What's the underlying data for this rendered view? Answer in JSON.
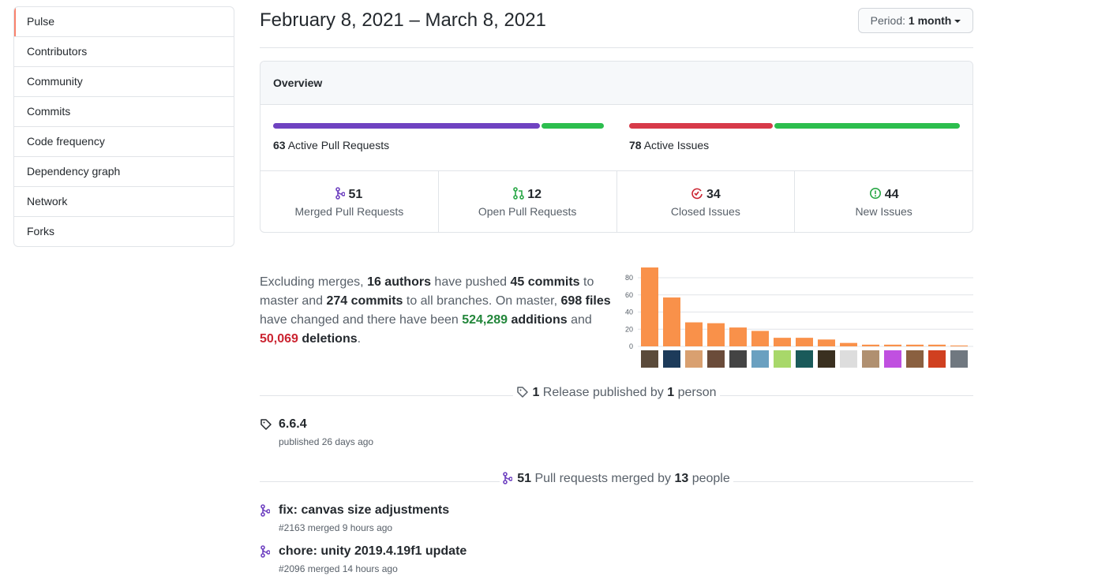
{
  "sidebar": {
    "items": [
      "Pulse",
      "Contributors",
      "Community",
      "Commits",
      "Code frequency",
      "Dependency graph",
      "Network",
      "Forks"
    ],
    "selected": 0
  },
  "header": {
    "title": "February 8, 2021 – March 8, 2021",
    "period_label": "Period:",
    "period_value": "1 month"
  },
  "overview": {
    "title": "Overview",
    "pull_requests": {
      "count": 63,
      "label": "Active Pull Requests"
    },
    "issues": {
      "count": 78,
      "label": "Active Issues"
    },
    "stats": [
      {
        "count": 51,
        "label": "Merged Pull Requests"
      },
      {
        "count": 12,
        "label": "Open Pull Requests"
      },
      {
        "count": 34,
        "label": "Closed Issues"
      },
      {
        "count": 44,
        "label": "New Issues"
      }
    ]
  },
  "summary": {
    "segments": [
      {
        "text": "Excluding merges, "
      },
      {
        "text": "16 authors",
        "style": "bold"
      },
      {
        "text": " have pushed "
      },
      {
        "text": "45 commits",
        "style": "bold"
      },
      {
        "text": " to master and "
      },
      {
        "text": "274 commits",
        "style": "bold"
      },
      {
        "text": " to all branches. On master, "
      },
      {
        "text": "698 files",
        "style": "bold"
      },
      {
        "text": " have changed and there have been "
      },
      {
        "text": "524,289",
        "style": "green"
      },
      {
        "text": " additions",
        "style": "bold"
      },
      {
        "text": " and "
      },
      {
        "text": "50,069",
        "style": "red"
      },
      {
        "text": " deletions",
        "style": "bold"
      },
      {
        "text": "."
      }
    ]
  },
  "chart_data": {
    "type": "bar",
    "values": [
      92,
      57,
      28,
      27,
      22,
      18,
      10,
      10,
      8,
      4,
      2,
      2,
      2,
      2,
      1
    ],
    "color": "#f9914a",
    "ylim": [
      0,
      92
    ],
    "yticks": [
      0,
      20,
      40,
      60,
      80
    ],
    "grid": true
  },
  "releases": {
    "heading": [
      {
        "text": "1",
        "style": "bold"
      },
      {
        "text": " Release published by "
      },
      {
        "text": "1",
        "style": "bold"
      },
      {
        "text": " person"
      }
    ],
    "items": [
      {
        "name": "6.6.4",
        "meta": "published 26 days ago"
      }
    ]
  },
  "pull_requests": {
    "heading": [
      {
        "text": "51",
        "style": "bold"
      },
      {
        "text": " Pull requests merged by "
      },
      {
        "text": "13",
        "style": "bold"
      },
      {
        "text": " people"
      }
    ],
    "items": [
      {
        "title": "fix: canvas size adjustments",
        "meta": "#2163 merged 9 hours ago"
      },
      {
        "title": "chore: unity 2019.4.19f1 update",
        "meta": "#2096 merged 14 hours ago"
      }
    ]
  }
}
